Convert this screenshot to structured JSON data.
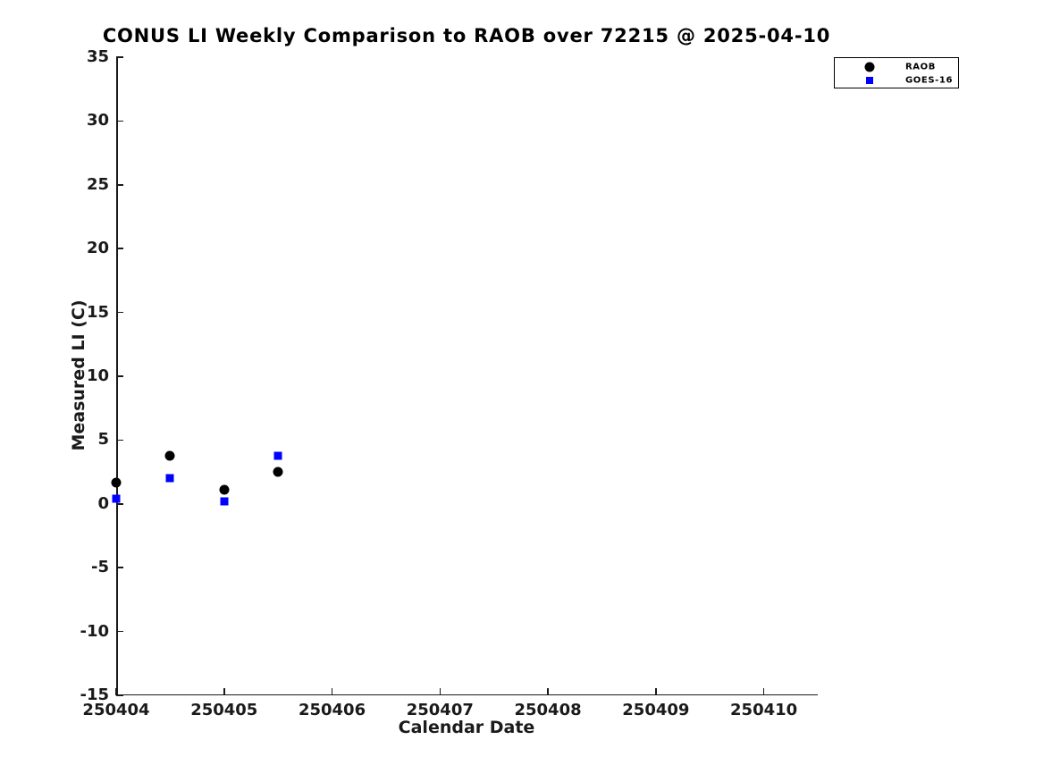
{
  "title": "CONUS LI Weekly Comparison to RAOB over 72215 @ 2025-04-10",
  "chart_data": {
    "type": "scatter",
    "title": "CONUS LI Weekly Comparison to RAOB over 72215 @ 2025-04-10",
    "xlabel": "Calendar Date",
    "ylabel": "Measured LI (C)",
    "xlim": [
      250404,
      250410.5
    ],
    "ylim": [
      -15,
      35
    ],
    "xticks": [
      250404,
      250405,
      250406,
      250407,
      250408,
      250409,
      250410
    ],
    "yticks": [
      -15,
      -10,
      -5,
      0,
      5,
      10,
      15,
      20,
      25,
      30,
      35
    ],
    "grid": false,
    "background_color": "#ffffff",
    "axis_color": "#1a1a1a",
    "legend_position": "top-right",
    "series": [
      {
        "name": "RAOB",
        "marker": "circle",
        "color": "#000000",
        "x": [
          250404,
          250404.5,
          250405,
          250405.5
        ],
        "y": [
          1.7,
          3.8,
          1.1,
          2.5
        ]
      },
      {
        "name": "GOES-16",
        "marker": "square",
        "color": "#0000ff",
        "x": [
          250404,
          250404.5,
          250405,
          250405.5
        ],
        "y": [
          0.4,
          2.0,
          0.2,
          3.8
        ]
      }
    ]
  }
}
